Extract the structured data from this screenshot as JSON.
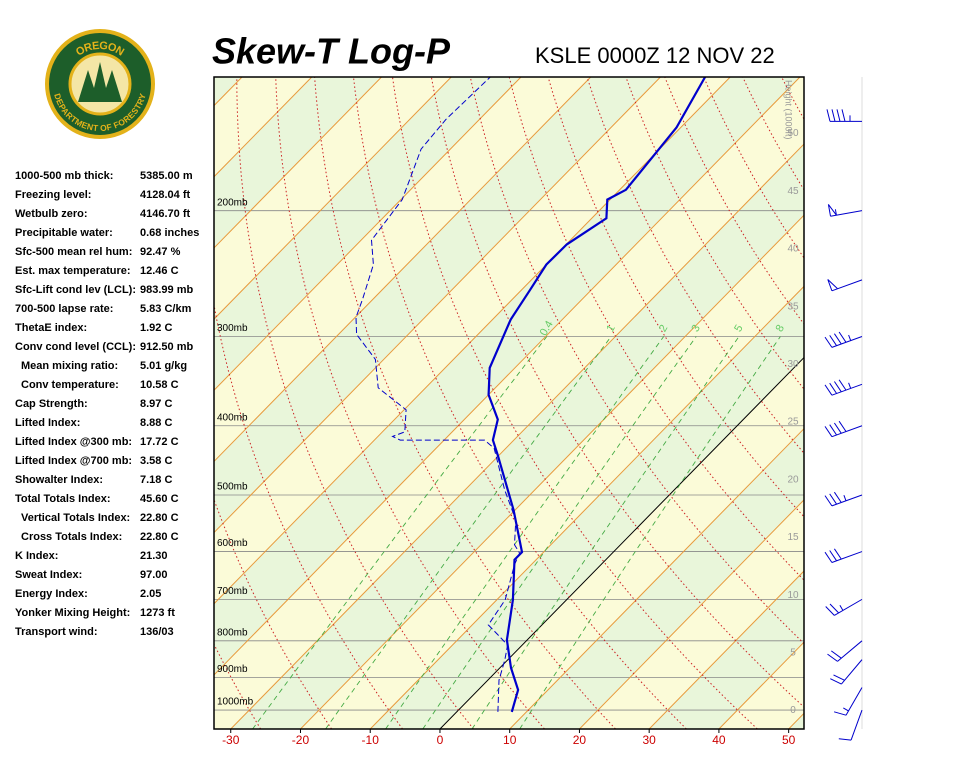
{
  "logo": {
    "top": "OREGON",
    "bottom": "DEPARTMENT OF FORESTRY"
  },
  "indices": [
    {
      "label": "1000-500 mb thick:",
      "value": "5385.00 m"
    },
    {
      "label": "Freezing level:",
      "value": "4128.04 ft"
    },
    {
      "label": "Wetbulb zero:",
      "value": "4146.70 ft"
    },
    {
      "label": "Precipitable water:",
      "value": "0.68 inches"
    },
    {
      "label": "Sfc-500 mean rel hum:",
      "value": "92.47 %"
    },
    {
      "label": "Est. max temperature:",
      "value": "12.46 C"
    },
    {
      "label": "Sfc-Lift cond lev (LCL):",
      "value": "983.99 mb"
    },
    {
      "label": "700-500 lapse rate:",
      "value": "5.83 C/km"
    },
    {
      "label": "ThetaE index:",
      "value": "1.92 C"
    },
    {
      "label": "Conv cond level (CCL):",
      "value": "912.50 mb"
    },
    {
      "label": "Mean mixing ratio:",
      "value": "5.01 g/kg",
      "indent": true
    },
    {
      "label": "Conv temperature:",
      "value": "10.58 C",
      "indent": true
    },
    {
      "label": "Cap Strength:",
      "value": "8.97 C"
    },
    {
      "label": "Lifted Index:",
      "value": "8.88 C"
    },
    {
      "label": "Lifted Index @300 mb:",
      "value": "17.72 C"
    },
    {
      "label": "Lifted Index @700 mb:",
      "value": "3.58 C"
    },
    {
      "label": "Showalter Index:",
      "value": "7.18 C"
    },
    {
      "label": "Total Totals Index:",
      "value": "45.60 C"
    },
    {
      "label": "Vertical Totals Index:",
      "value": "22.80 C",
      "indent": true
    },
    {
      "label": "Cross Totals Index:",
      "value": "22.80 C",
      "indent": true
    },
    {
      "label": "K Index:",
      "value": "21.30"
    },
    {
      "label": "Sweat Index:",
      "value": "97.00"
    },
    {
      "label": "Energy Index:",
      "value": "2.05"
    },
    {
      "label": "Yonker Mixing Height:",
      "value": "1273 ft"
    },
    {
      "label": "Transport wind:",
      "value": "136/03"
    }
  ],
  "chart_data": {
    "type": "skew-t",
    "title": "Skew-T Log-P",
    "subtitle": "KSLE 0000Z 12 NOV 22",
    "xlim": [
      -32.4,
      52.2
    ],
    "xticks": [
      -30,
      -20,
      -10,
      0,
      10,
      20,
      30,
      40,
      50
    ],
    "ylim": [
      1063,
      130
    ],
    "log_y": true,
    "yticks": [
      {
        "value": 1000,
        "label": "1000mb"
      },
      {
        "value": 900,
        "label": "900mb"
      },
      {
        "value": 800,
        "label": "800mb"
      },
      {
        "value": 700,
        "label": "700mb"
      },
      {
        "value": 600,
        "label": "600mb"
      },
      {
        "value": 500,
        "label": "500mb"
      },
      {
        "value": 400,
        "label": "400mb"
      },
      {
        "value": 300,
        "label": "300mb"
      },
      {
        "value": 200,
        "label": "200mb"
      }
    ],
    "height_label": "Height (1000ft)",
    "hlim": [
      -1.6,
      54.9
    ],
    "hticks": [
      0,
      5,
      10,
      15,
      20,
      25,
      30,
      35,
      40,
      45,
      50
    ],
    "mixing_ratios": [
      0.4,
      1,
      2,
      3,
      5,
      8
    ],
    "series": [
      {
        "name": "Temperature",
        "color": "#0000cc",
        "dashed": false,
        "pressure": [
          1006,
          937,
          873,
          798,
          701,
          616,
          601,
          525,
          439,
          419,
          392,
          362,
          332,
          284,
          258,
          238,
          223,
          205,
          193,
          187,
          153,
          130
        ],
        "values": [
          7.9,
          5.7,
          1.6,
          -2.9,
          -7.7,
          -13.1,
          -13.1,
          -20.2,
          -30.3,
          -33.0,
          -35.2,
          -40.0,
          -43.6,
          -47.4,
          -48.8,
          -50.0,
          -49.9,
          -47.9,
          -50.4,
          -49.1,
          -50.6,
          -53.6
        ]
      },
      {
        "name": "Dewpoint",
        "color": "#0000cc",
        "dashed": true,
        "pressure": [
          1006,
          908,
          851,
          811,
          785,
          760,
          701,
          626,
          603,
          587,
          542,
          492,
          430,
          419,
          419,
          414,
          408,
          380,
          354,
          323,
          298,
          282,
          266,
          238,
          220,
          193,
          164,
          149,
          130
        ],
        "values": [
          5.9,
          1.6,
          -0.4,
          -2.1,
          -4.9,
          -7.7,
          -8.8,
          -12.4,
          -13.3,
          -15.2,
          -18.5,
          -24.3,
          -31.7,
          -34.2,
          -46.3,
          -47.9,
          -46.8,
          -49.7,
          -56.8,
          -61.2,
          -67.4,
          -69.9,
          -71.5,
          -74.8,
          -78.5,
          -79.8,
          -84.2,
          -84.8,
          -84.4
        ]
      }
    ],
    "wind": {
      "pressure": [
        1000,
        930,
        850,
        800,
        700,
        600,
        500,
        400,
        350,
        300,
        250,
        200,
        150
      ],
      "direction": [
        200,
        210,
        220,
        230,
        240,
        250,
        250,
        250,
        250,
        250,
        250,
        260,
        270
      ],
      "speed": [
        10,
        15,
        20,
        20,
        25,
        30,
        35,
        40,
        45,
        45,
        50,
        55,
        45
      ]
    }
  }
}
